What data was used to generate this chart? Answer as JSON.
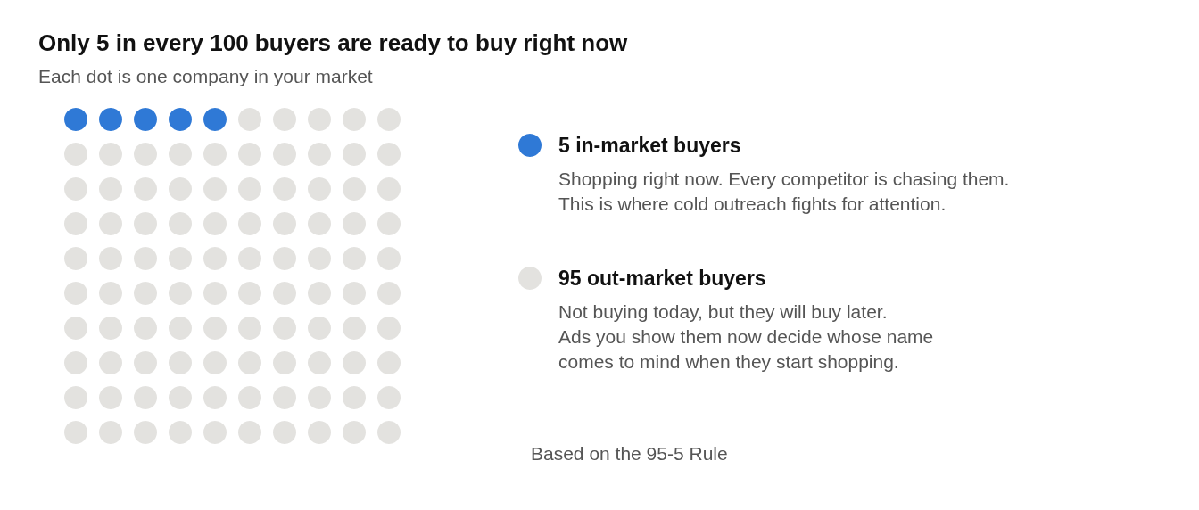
{
  "chart_data": {
    "type": "other",
    "title": "Only 5 in every 100 buyers are ready to buy right now",
    "subtitle": "Each dot is one company in your market",
    "categories": [
      "in-market buyers",
      "out-market buyers"
    ],
    "values": [
      5,
      95
    ],
    "colors": [
      "#2f79d6",
      "#e3e2df"
    ],
    "data_labels": true,
    "annotations": [
      "Shopping right now. Every competitor is chasing them.\nThis is where cold outreach fights for attention.",
      "Not buying today, but they will buy later.\nAds you show them now decide whose name\ncomes to mind when they start shopping.",
      "Based on the 95-5 Rule"
    ]
  }
}
